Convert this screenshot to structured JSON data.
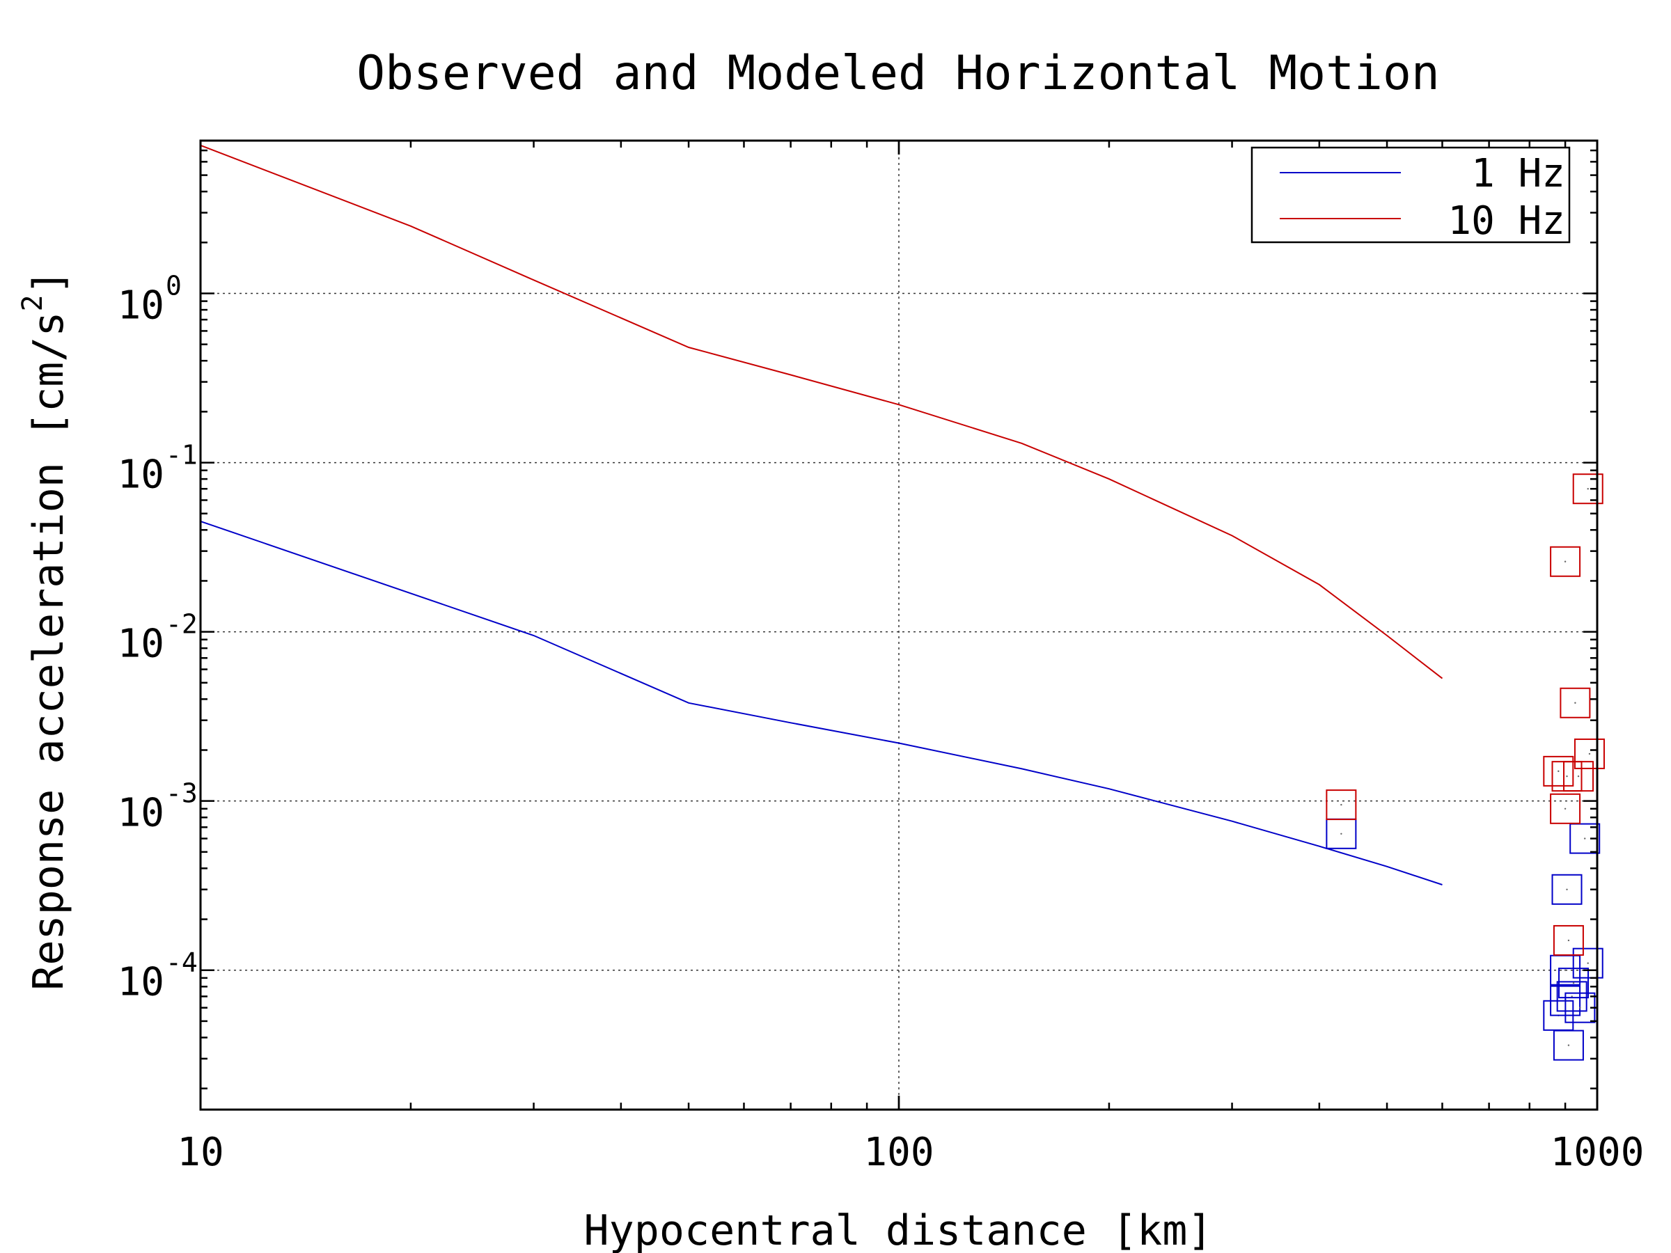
{
  "chart_data": {
    "type": "line",
    "title": "Observed and Modeled Horizontal Motion",
    "xlabel": "Hypocentral distance [km]",
    "ylabel": "Response acceleration [cm/s",
    "ylabel_superscript": "2",
    "ylabel_close": "]",
    "x_scale": "log",
    "y_scale": "log",
    "xlim": [
      10,
      1000
    ],
    "ylim": [
      1.5e-05,
      8
    ],
    "x_ticks": [
      {
        "value": 10,
        "label": "10"
      },
      {
        "value": 100,
        "label": "100"
      },
      {
        "value": 1000,
        "label": "1000"
      }
    ],
    "y_ticks": [
      {
        "value": 1,
        "base": "10",
        "exp": "0"
      },
      {
        "value": 0.1,
        "base": "10",
        "exp": "-1"
      },
      {
        "value": 0.01,
        "base": "10",
        "exp": "-2"
      },
      {
        "value": 0.001,
        "base": "10",
        "exp": "-3"
      },
      {
        "value": 0.0001,
        "base": "10",
        "exp": "-4"
      }
    ],
    "grid": true,
    "legend_position": "top-right",
    "series": [
      {
        "name": "1 Hz",
        "color": "#0000c8",
        "line": {
          "x": [
            10,
            30,
            50,
            70,
            100,
            150,
            200,
            300,
            400,
            500,
            600
          ],
          "y": [
            0.045,
            0.0095,
            0.0038,
            0.0029,
            0.0022,
            0.00155,
            0.00118,
            0.00076,
            0.00054,
            0.00041,
            0.00032
          ]
        },
        "observed": {
          "x": [
            430,
            880,
            900,
            900,
            905,
            910,
            920,
            925,
            945,
            960,
            970
          ],
          "y": [
            0.00064,
            5.4e-05,
            6.6e-05,
            0.0001,
            0.0003,
            3.6e-05,
            7e-05,
            8.4e-05,
            6e-05,
            0.0006,
            0.00011
          ]
        }
      },
      {
        "name": "10 Hz",
        "color": "#c80000",
        "line": {
          "x": [
            10,
            20,
            30,
            50,
            70,
            100,
            150,
            200,
            300,
            400,
            500,
            600
          ],
          "y": [
            7.5,
            2.5,
            1.2,
            0.48,
            0.33,
            0.22,
            0.13,
            0.08,
            0.037,
            0.019,
            0.0095,
            0.0053
          ]
        },
        "observed": {
          "x": [
            430,
            880,
            900,
            900,
            905,
            910,
            930,
            940,
            970,
            975
          ],
          "y": [
            0.00095,
            0.0015,
            0.026,
            0.0009,
            0.0014,
            0.00015,
            0.0038,
            0.0014,
            0.07,
            0.0019
          ]
        }
      }
    ]
  }
}
